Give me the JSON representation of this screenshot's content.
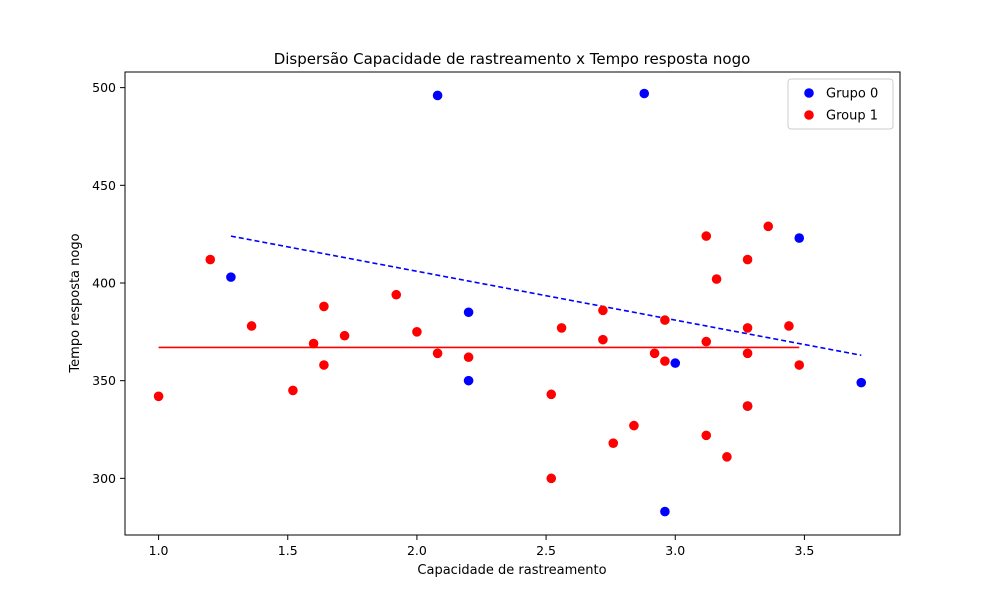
{
  "chart_data": {
    "type": "scatter",
    "title": "Dispersão Capacidade de rastreamento x Tempo resposta nogo",
    "xlabel": "Capacidade de rastreamento",
    "ylabel": "Tempo resposta nogo",
    "xlim": [
      0.87,
      3.87
    ],
    "ylim": [
      271,
      508
    ],
    "xticks": [
      "1.0",
      "1.5",
      "2.0",
      "2.5",
      "3.0",
      "3.5"
    ],
    "yticks": [
      "300",
      "350",
      "400",
      "450",
      "500"
    ],
    "grid": false,
    "legend_position": "top-right",
    "series": [
      {
        "name": "Grupo 0",
        "color": "#0000ff",
        "points": [
          [
            1.28,
            403
          ],
          [
            2.08,
            496
          ],
          [
            2.2,
            385
          ],
          [
            2.2,
            350
          ],
          [
            2.88,
            497
          ],
          [
            3.0,
            359
          ],
          [
            2.96,
            283
          ],
          [
            3.28,
            337
          ],
          [
            3.48,
            423
          ],
          [
            3.72,
            349
          ]
        ],
        "trend": {
          "x": [
            1.28,
            3.72
          ],
          "y": [
            424,
            363
          ],
          "style": "dashed"
        }
      },
      {
        "name": "Group 1",
        "color": "#ff0000",
        "points": [
          [
            1.0,
            342
          ],
          [
            1.2,
            412
          ],
          [
            1.36,
            378
          ],
          [
            1.52,
            345
          ],
          [
            1.6,
            369
          ],
          [
            1.64,
            388
          ],
          [
            1.64,
            358
          ],
          [
            1.72,
            373
          ],
          [
            1.92,
            394
          ],
          [
            2.0,
            375
          ],
          [
            2.08,
            364
          ],
          [
            2.2,
            362
          ],
          [
            2.52,
            343
          ],
          [
            2.52,
            300
          ],
          [
            2.56,
            377
          ],
          [
            2.72,
            386
          ],
          [
            2.72,
            371
          ],
          [
            2.76,
            318
          ],
          [
            2.84,
            327
          ],
          [
            2.92,
            364
          ],
          [
            2.96,
            381
          ],
          [
            2.96,
            360
          ],
          [
            3.12,
            424
          ],
          [
            3.12,
            370
          ],
          [
            3.12,
            322
          ],
          [
            3.16,
            402
          ],
          [
            3.2,
            311
          ],
          [
            3.28,
            412
          ],
          [
            3.28,
            377
          ],
          [
            3.28,
            364
          ],
          [
            3.28,
            337
          ],
          [
            3.36,
            429
          ],
          [
            3.44,
            378
          ],
          [
            3.48,
            358
          ]
        ],
        "trend": {
          "x": [
            1.0,
            3.48
          ],
          "y": [
            367,
            367
          ],
          "style": "solid"
        }
      }
    ]
  }
}
